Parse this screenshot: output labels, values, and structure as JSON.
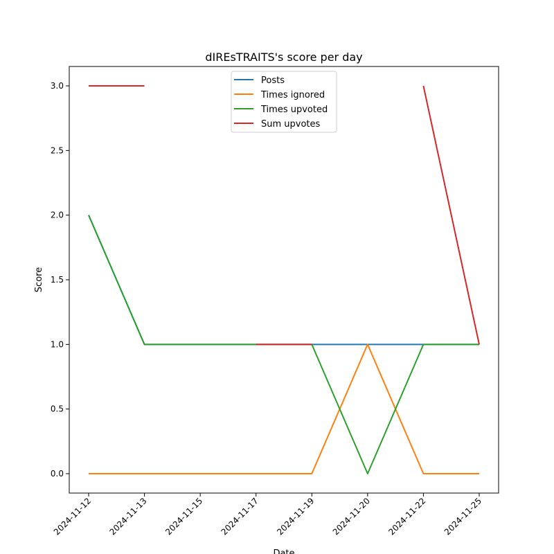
{
  "chart_data": {
    "type": "line",
    "title": "dIREsTRAITS's score per day",
    "xlabel": "Date",
    "ylabel": "Score",
    "categories": [
      "2024-11-12",
      "2024-11-13",
      "2024-11-15",
      "2024-11-17",
      "2024-11-19",
      "2024-11-20",
      "2024-11-22",
      "2024-11-25"
    ],
    "ylim": [
      -0.15,
      3.15
    ],
    "yticks": [
      0.0,
      0.5,
      1.0,
      1.5,
      2.0,
      2.5,
      3.0
    ],
    "ytick_labels": [
      "0.0",
      "0.5",
      "1.0",
      "1.5",
      "2.0",
      "2.5",
      "3.0"
    ],
    "grid": false,
    "legend_position": "upper center",
    "series": [
      {
        "name": "Posts",
        "color": "#1f77b4",
        "values": [
          2,
          1,
          1,
          1,
          1,
          1,
          1,
          1
        ]
      },
      {
        "name": "Times ignored",
        "color": "#ff7f0e",
        "values": [
          0,
          0,
          0,
          0,
          0,
          1,
          0,
          0
        ]
      },
      {
        "name": "Times upvoted",
        "color": "#2ca02c",
        "values": [
          2,
          1,
          1,
          1,
          1,
          0,
          1,
          1
        ]
      },
      {
        "name": "Sum upvotes",
        "color": "#d62728",
        "values": [
          3,
          3,
          null,
          1,
          1,
          null,
          3,
          1
        ]
      }
    ]
  }
}
